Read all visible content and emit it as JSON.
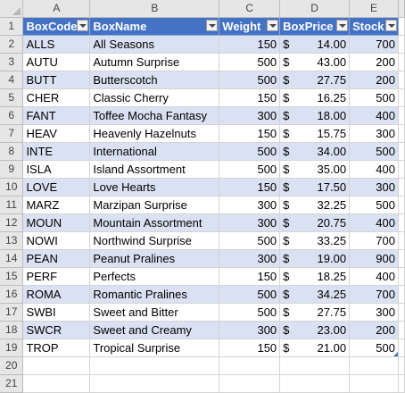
{
  "columns": [
    "A",
    "B",
    "C",
    "D",
    "E"
  ],
  "headers": [
    "BoxCode",
    "BoxName",
    "Weight",
    "BoxPrice",
    "Stock"
  ],
  "currency_symbol": "$",
  "rows": [
    [
      "ALLS",
      "All Seasons",
      "150",
      "14.00",
      "700"
    ],
    [
      "AUTU",
      "Autumn Surprise",
      "500",
      "43.00",
      "200"
    ],
    [
      "BUTT",
      "Butterscotch",
      "500",
      "27.75",
      "200"
    ],
    [
      "CHER",
      "Classic Cherry",
      "150",
      "16.25",
      "500"
    ],
    [
      "FANT",
      "Toffee Mocha Fantasy",
      "300",
      "18.00",
      "400"
    ],
    [
      "HEAV",
      "Heavenly Hazelnuts",
      "150",
      "15.75",
      "300"
    ],
    [
      "INTE",
      "International",
      "500",
      "34.00",
      "500"
    ],
    [
      "ISLA",
      "Island Assortment",
      "500",
      "35.00",
      "400"
    ],
    [
      "LOVE",
      "Love Hearts",
      "150",
      "17.50",
      "300"
    ],
    [
      "MARZ",
      "Marzipan Surprise",
      "300",
      "32.25",
      "500"
    ],
    [
      "MOUN",
      "Mountain Assortment",
      "300",
      "20.75",
      "400"
    ],
    [
      "NOWI",
      "Northwind Surprise",
      "500",
      "33.25",
      "700"
    ],
    [
      "PEAN",
      "Peanut Pralines",
      "300",
      "19.00",
      "900"
    ],
    [
      "PERF",
      "Perfects",
      "150",
      "18.25",
      "400"
    ],
    [
      "ROMA",
      "Romantic Pralines",
      "500",
      "34.25",
      "700"
    ],
    [
      "SWBI",
      "Sweet and Bitter",
      "500",
      "27.75",
      "300"
    ],
    [
      "SWCR",
      "Sweet and Creamy",
      "300",
      "23.00",
      "200"
    ],
    [
      "TROP",
      "Tropical Surprise",
      "150",
      "21.00",
      "500"
    ]
  ],
  "extra_rows": [
    "20",
    "21"
  ],
  "colors": {
    "header_fill": "#4472c4",
    "band_fill": "#d9e1f2"
  }
}
